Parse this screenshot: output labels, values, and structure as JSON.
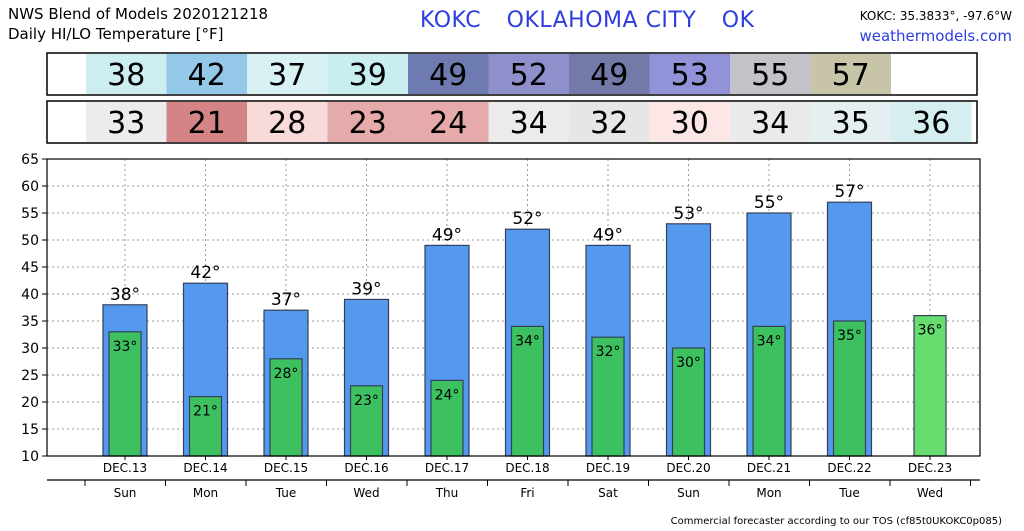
{
  "header": {
    "title_line1": "NWS Blend of Models 2020121218",
    "title_line2": "Daily HI/LO Temperature [°F]",
    "station_code": "KOKC",
    "station_name": "OKLAHOMA CITY",
    "station_state": "OK",
    "coords": "KOKC: 35.3833°, -97.6°W",
    "site": "weathermodels.com"
  },
  "footer": {
    "text": "Commercial forecaster according to our TOS (cf85t0UKOKC0p085)"
  },
  "colors": {
    "high_bar": "#5599ee",
    "low_bar": "#3cc060",
    "low_bar_last": "#66dd6e",
    "bar_edge": "#34405a",
    "grid": "#999999"
  },
  "high_row": {
    "values": [
      "38",
      "42",
      "37",
      "39",
      "49",
      "52",
      "49",
      "53",
      "55",
      "57"
    ],
    "colors": [
      "#cdeef0",
      "#93c8e8",
      "#d8f2f4",
      "#c8eef0",
      "#6d7bb0",
      "#8f8fcc",
      "#737aa8",
      "#9292d8",
      "#c2c2c8",
      "#c8c4a8"
    ]
  },
  "low_row": {
    "values": [
      "33",
      "21",
      "28",
      "23",
      "24",
      "34",
      "32",
      "30",
      "34",
      "35",
      "36"
    ],
    "colors": [
      "#ececec",
      "#d48484",
      "#f8dada",
      "#e5aaaa",
      "#e6aaaa",
      "#ebebeb",
      "#e6e6e6",
      "#fde6e6",
      "#eaeaea",
      "#e5eef0",
      "#d6eef0"
    ]
  },
  "chart_data": {
    "type": "bar",
    "title": "Daily HI/LO Temperature [°F]",
    "categories": [
      "DEC.13",
      "DEC.14",
      "DEC.15",
      "DEC.16",
      "DEC.17",
      "DEC.18",
      "DEC.19",
      "DEC.20",
      "DEC.21",
      "DEC.22",
      "DEC.23"
    ],
    "weekdays": [
      "Sun",
      "Mon",
      "Tue",
      "Wed",
      "Thu",
      "Fri",
      "Sat",
      "Sun",
      "Mon",
      "Tue",
      "Wed"
    ],
    "series": [
      {
        "name": "HI",
        "values": [
          38,
          42,
          37,
          39,
          49,
          52,
          49,
          53,
          55,
          57,
          null
        ],
        "labels": [
          "38°",
          "42°",
          "37°",
          "39°",
          "49°",
          "52°",
          "49°",
          "53°",
          "55°",
          "57°",
          ""
        ]
      },
      {
        "name": "LO",
        "values": [
          33,
          21,
          28,
          23,
          24,
          34,
          32,
          30,
          34,
          35,
          36
        ],
        "labels": [
          "33°",
          "21°",
          "28°",
          "23°",
          "24°",
          "34°",
          "32°",
          "30°",
          "34°",
          "35°",
          "36°"
        ]
      }
    ],
    "ylim": [
      10,
      65
    ],
    "yticks": [
      10,
      15,
      20,
      25,
      30,
      35,
      40,
      45,
      50,
      55,
      60,
      65
    ],
    "grid": true
  }
}
